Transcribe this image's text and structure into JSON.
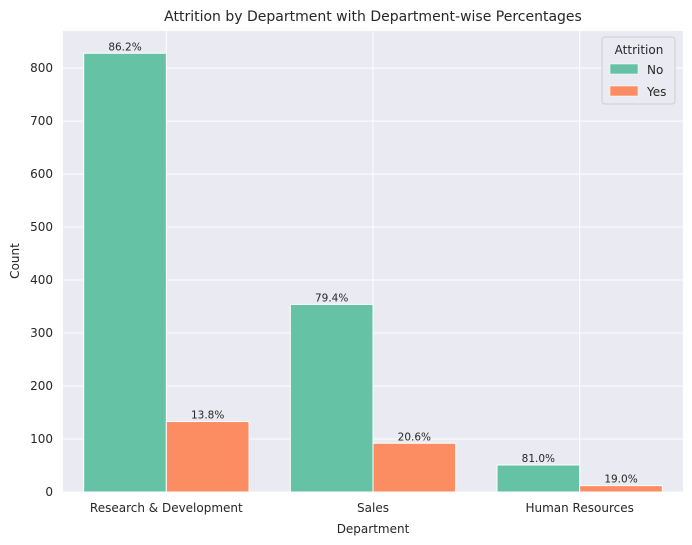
{
  "chart_data": {
    "type": "bar",
    "title": "Attrition by Department with Department-wise Percentages",
    "xlabel": "Department",
    "ylabel": "Count",
    "categories": [
      "Research & Development",
      "Sales",
      "Human Resources"
    ],
    "ylim": [
      0,
      870
    ],
    "yticks": [
      0,
      100,
      200,
      300,
      400,
      500,
      600,
      700,
      800
    ],
    "grid": true,
    "legend": {
      "title": "Attrition",
      "placement": "top-right"
    },
    "series": [
      {
        "name": "No",
        "color": "#66c2a5",
        "values": [
          828,
          354,
          51
        ],
        "labels": [
          "86.2%",
          "79.4%",
          "81.0%"
        ]
      },
      {
        "name": "Yes",
        "color": "#fc8d62",
        "values": [
          133,
          92,
          12
        ],
        "labels": [
          "13.8%",
          "20.6%",
          "19.0%"
        ]
      }
    ],
    "background_color": "#eaeaf2",
    "grid_color": "#ffffff"
  }
}
